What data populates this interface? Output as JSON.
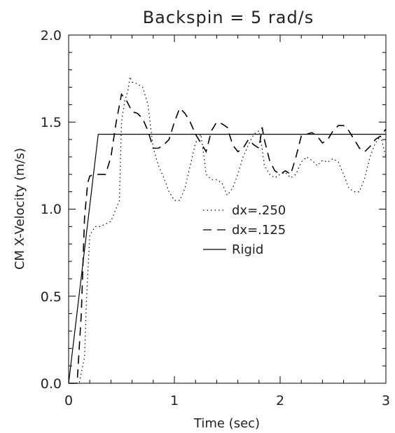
{
  "chart_data": {
    "type": "line",
    "title": "Backspin = 5 rad/s",
    "xlabel": "Time (sec)",
    "ylabel": "CM X-Velocity (m/s)",
    "xlim": [
      0,
      3
    ],
    "ylim": [
      0,
      2
    ],
    "x_ticks": [
      "0",
      "1",
      "2",
      "3"
    ],
    "y_ticks": [
      "0.0",
      "0.5",
      "1.0",
      "1.5",
      "2.0"
    ],
    "grid": false,
    "legend_position": "center-right",
    "series": [
      {
        "name": "dx=.250",
        "style": "dotted",
        "x": [
          0,
          0.1,
          0.15,
          0.17,
          0.2,
          0.25,
          0.3,
          0.4,
          0.48,
          0.5,
          0.53,
          0.56,
          0.58,
          0.6,
          0.65,
          0.7,
          0.75,
          0.8,
          0.85,
          0.9,
          0.95,
          1.0,
          1.05,
          1.1,
          1.15,
          1.2,
          1.25,
          1.28,
          1.3,
          1.35,
          1.4,
          1.45,
          1.5,
          1.55,
          1.6,
          1.65,
          1.7,
          1.75,
          1.8,
          1.83,
          1.85,
          1.9,
          1.95,
          2.0,
          2.05,
          2.1,
          2.15,
          2.2,
          2.25,
          2.3,
          2.35,
          2.4,
          2.45,
          2.5,
          2.55,
          2.6,
          2.65,
          2.7,
          2.75,
          2.8,
          2.85,
          2.9,
          2.95,
          3.0
        ],
        "y": [
          0.0,
          0.0,
          0.15,
          0.5,
          0.85,
          0.9,
          0.9,
          0.93,
          1.05,
          1.5,
          1.62,
          1.68,
          1.76,
          1.73,
          1.72,
          1.7,
          1.6,
          1.35,
          1.25,
          1.18,
          1.1,
          1.05,
          1.05,
          1.12,
          1.25,
          1.38,
          1.43,
          1.3,
          1.2,
          1.17,
          1.17,
          1.15,
          1.08,
          1.12,
          1.2,
          1.3,
          1.37,
          1.43,
          1.45,
          1.35,
          1.25,
          1.2,
          1.18,
          1.2,
          1.21,
          1.18,
          1.2,
          1.27,
          1.3,
          1.28,
          1.25,
          1.28,
          1.27,
          1.29,
          1.27,
          1.2,
          1.12,
          1.1,
          1.1,
          1.18,
          1.3,
          1.38,
          1.42,
          1.3
        ]
      },
      {
        "name": "dx=.125",
        "style": "dashed",
        "x": [
          0,
          0.08,
          0.12,
          0.15,
          0.18,
          0.2,
          0.25,
          0.3,
          0.35,
          0.4,
          0.45,
          0.5,
          0.55,
          0.6,
          0.65,
          0.7,
          0.75,
          0.8,
          0.85,
          0.9,
          0.95,
          1.0,
          1.05,
          1.1,
          1.15,
          1.2,
          1.25,
          1.3,
          1.35,
          1.4,
          1.45,
          1.5,
          1.55,
          1.6,
          1.65,
          1.7,
          1.75,
          1.8,
          1.83,
          1.85,
          1.9,
          1.95,
          2.0,
          2.05,
          2.1,
          2.15,
          2.2,
          2.25,
          2.3,
          2.35,
          2.4,
          2.45,
          2.5,
          2.55,
          2.6,
          2.65,
          2.7,
          2.75,
          2.8,
          2.85,
          2.9,
          2.95,
          3.0
        ],
        "y": [
          0.0,
          0.0,
          0.4,
          0.95,
          1.15,
          1.19,
          1.2,
          1.2,
          1.2,
          1.3,
          1.5,
          1.66,
          1.62,
          1.56,
          1.55,
          1.52,
          1.45,
          1.35,
          1.35,
          1.37,
          1.4,
          1.5,
          1.58,
          1.55,
          1.5,
          1.43,
          1.38,
          1.33,
          1.45,
          1.5,
          1.49,
          1.47,
          1.37,
          1.33,
          1.35,
          1.4,
          1.37,
          1.35,
          1.47,
          1.4,
          1.28,
          1.22,
          1.2,
          1.22,
          1.2,
          1.3,
          1.42,
          1.43,
          1.44,
          1.42,
          1.38,
          1.4,
          1.45,
          1.48,
          1.48,
          1.45,
          1.4,
          1.35,
          1.33,
          1.36,
          1.4,
          1.42,
          1.46
        ]
      },
      {
        "name": "Rigid",
        "style": "solid",
        "x": [
          0,
          0.28,
          3.0
        ],
        "y": [
          0.0,
          1.43,
          1.43
        ]
      }
    ]
  }
}
